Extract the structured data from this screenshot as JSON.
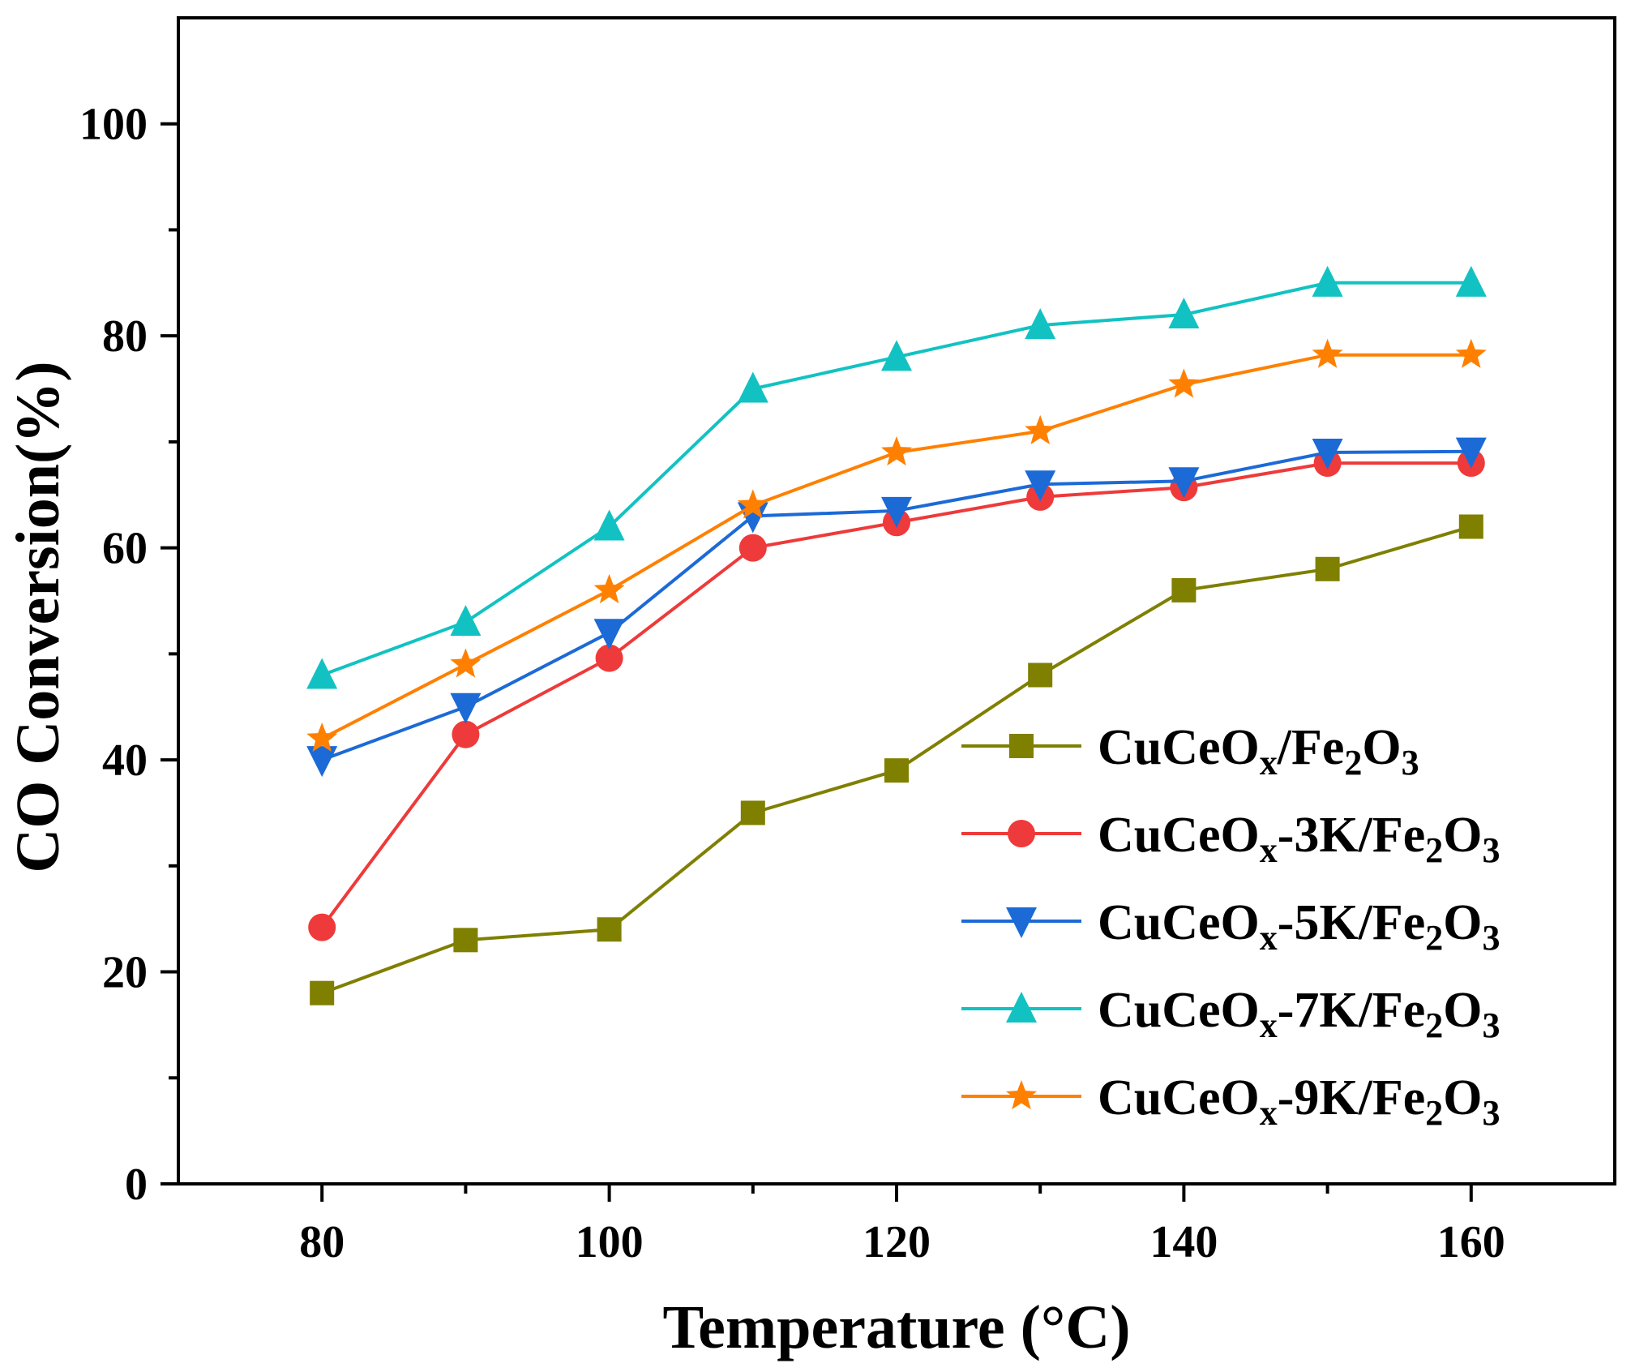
{
  "chart_data": {
    "type": "line",
    "title": "",
    "xlabel": "Temperature (°C)",
    "ylabel": "CO Conversion(%)",
    "xlim": [
      70,
      170
    ],
    "ylim": [
      0,
      110
    ],
    "xticks": [
      80,
      100,
      120,
      140,
      160
    ],
    "xticks_minor": [
      90,
      110,
      130,
      150
    ],
    "yticks": [
      0,
      20,
      40,
      60,
      80,
      100
    ],
    "yticks_minor": [
      10,
      30,
      50,
      70,
      90
    ],
    "grid": false,
    "legend_position": "lower-right",
    "x": [
      80,
      90,
      100,
      110,
      120,
      130,
      140,
      150,
      160
    ],
    "series": [
      {
        "name": "CuCeOx/Fe2O3",
        "label_parts": [
          [
            "CuCeO",
            ""
          ],
          [
            "x",
            "sub"
          ],
          [
            "/Fe",
            ""
          ],
          [
            "2",
            "sub"
          ],
          [
            "O",
            ""
          ],
          [
            "3",
            "sub"
          ]
        ],
        "marker": "square",
        "color": "#7f7f00",
        "values": [
          18,
          23,
          24,
          35,
          39,
          48,
          56,
          58,
          62
        ]
      },
      {
        "name": "CuCeOx-3K/Fe2O3",
        "label_parts": [
          [
            "CuCeO",
            ""
          ],
          [
            "x",
            "sub"
          ],
          [
            "-3K/Fe",
            ""
          ],
          [
            "2",
            "sub"
          ],
          [
            "O",
            ""
          ],
          [
            "3",
            "sub"
          ]
        ],
        "marker": "circle",
        "color": "#ee3a3a",
        "values": [
          24.2,
          42.4,
          49.6,
          60,
          62.4,
          64.8,
          65.7,
          68,
          68
        ]
      },
      {
        "name": "CuCeOx-5K/Fe2O3",
        "label_parts": [
          [
            "CuCeO",
            ""
          ],
          [
            "x",
            "sub"
          ],
          [
            "-5K/Fe",
            ""
          ],
          [
            "2",
            "sub"
          ],
          [
            "O",
            ""
          ],
          [
            "3",
            "sub"
          ]
        ],
        "marker": "triangle-down",
        "color": "#1c6ad6",
        "values": [
          40,
          45,
          52,
          63,
          63.5,
          66,
          66.3,
          69,
          69.1
        ]
      },
      {
        "name": "CuCeOx-7K/Fe2O3",
        "label_parts": [
          [
            "CuCeO",
            ""
          ],
          [
            "x",
            "sub"
          ],
          [
            "-7K/Fe",
            ""
          ],
          [
            "2",
            "sub"
          ],
          [
            "O",
            ""
          ],
          [
            "3",
            "sub"
          ]
        ],
        "marker": "triangle-up",
        "color": "#12c2c2",
        "values": [
          48,
          53,
          62,
          75,
          78,
          81,
          82,
          85,
          85
        ]
      },
      {
        "name": "CuCeOx-9K/Fe2O3",
        "label_parts": [
          [
            "CuCeO",
            ""
          ],
          [
            "x",
            "sub"
          ],
          [
            "-9K/Fe",
            ""
          ],
          [
            "2",
            "sub"
          ],
          [
            "O",
            ""
          ],
          [
            "3",
            "sub"
          ]
        ],
        "marker": "star",
        "color": "#ff8000",
        "values": [
          42,
          49,
          56,
          64,
          69,
          71,
          75.4,
          78.2,
          78.2
        ]
      }
    ]
  }
}
